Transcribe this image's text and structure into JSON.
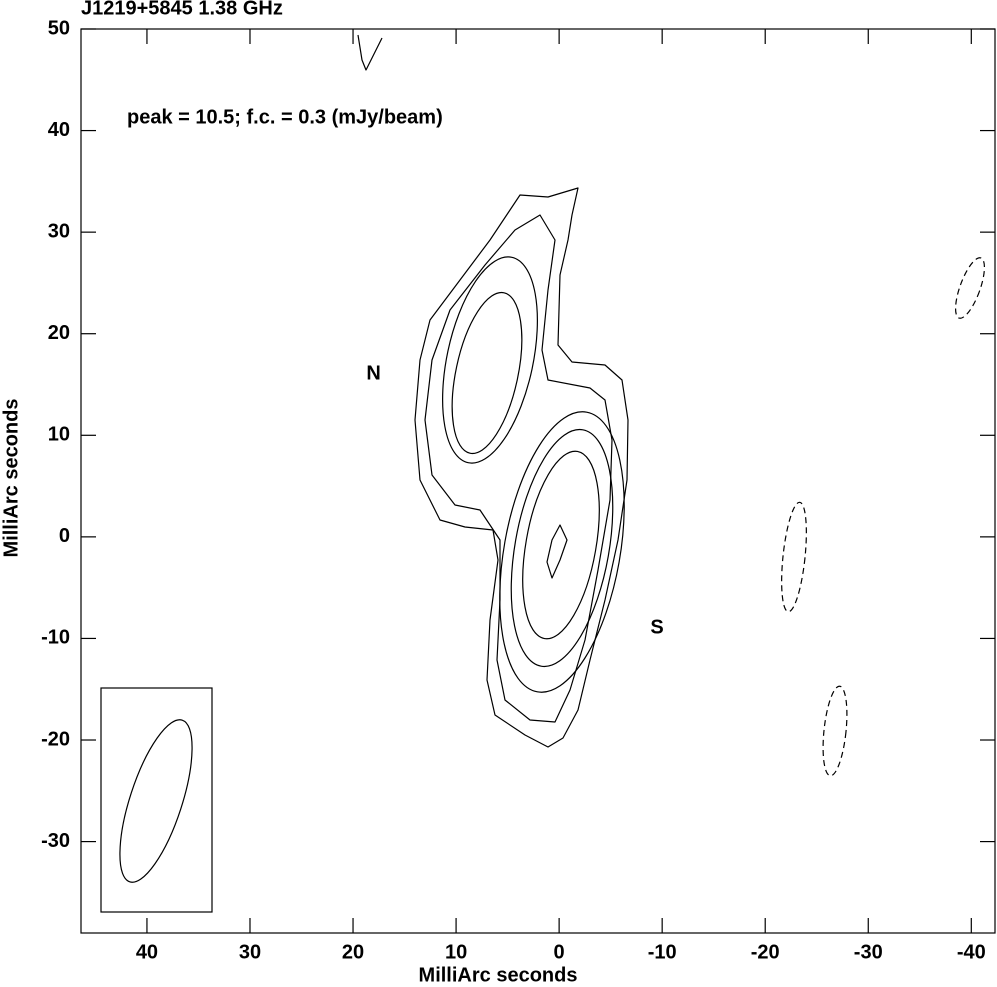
{
  "chart_data": {
    "type": "contour",
    "title": "J1219+5845  1.38 GHz",
    "annotation": "peak = 10.5;  f.c. = 0.3 (mJy/beam)",
    "component_labels": [
      {
        "text": "N",
        "x": 18,
        "y": 16
      },
      {
        "text": "S",
        "x": -9.5,
        "y": -9
      }
    ],
    "xlabel": "MilliArc seconds",
    "ylabel": "MilliArc seconds",
    "xlim": [
      46.4,
      -42.3
    ],
    "ylim": [
      -39,
      50
    ],
    "xticks": [
      40,
      30,
      20,
      10,
      0,
      -10,
      -20,
      -30,
      -40
    ],
    "yticks": [
      -30,
      -20,
      -10,
      0,
      10,
      20,
      30,
      40,
      50
    ]
  }
}
